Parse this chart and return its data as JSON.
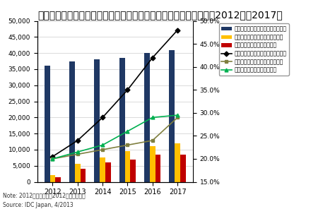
{
  "years": [
    2012,
    2013,
    2014,
    2015,
    2016,
    2017
  ],
  "bar_blue": [
    36000,
    37500,
    38000,
    38500,
    40000,
    41000
  ],
  "bar_yellow": [
    2000,
    5500,
    7500,
    9500,
    11000,
    12000
  ],
  "bar_red": [
    1500,
    4000,
    6000,
    7000,
    8500,
    8500
  ],
  "line_black": [
    20.5,
    24.0,
    29.0,
    35.0,
    42.0,
    48.0
  ],
  "line_olive": [
    20.0,
    21.0,
    22.0,
    23.0,
    24.0,
    29.0
  ],
  "line_green": [
    20.0,
    21.5,
    23.0,
    26.0,
    29.0,
    29.5
  ],
  "title": "国内クライアント仮想化／モバイル仮想化デバイス別導入率予測、2012年～2017年",
  "ylim_left": [
    0,
    50000
  ],
  "ylim_right": [
    15.0,
    50.0
  ],
  "yticks_left": [
    0,
    5000,
    10000,
    15000,
    20000,
    25000,
    30000,
    35000,
    40000,
    45000,
    50000
  ],
  "yticks_right": [
    15.0,
    20.0,
    25.0,
    30.0,
    35.0,
    40.0,
    45.0,
    50.0
  ],
  "color_blue": "#1f3864",
  "color_yellow": "#ffc000",
  "color_red": "#c00000",
  "color_black": "#000000",
  "color_olive": "#7f7f3f",
  "color_green": "#00b050",
  "legend_labels": [
    "法人向けクライアント累計稼働台数",
    "法人利用スマートフォン加入者数",
    "法人利用タブレット稼働台数",
    "法人向けクライアント仮想化導入率",
    "法人利用スマートフォン仮想化率",
    "法人利用タブレット仮想化率"
  ],
  "note": "Note: 2012年は実積値、2012年以降は予測",
  "source": "Source: IDC Japan, 4/2013",
  "title_fontsize": 7.5,
  "bar_width": 0.22,
  "bg_color": "#ffffff"
}
